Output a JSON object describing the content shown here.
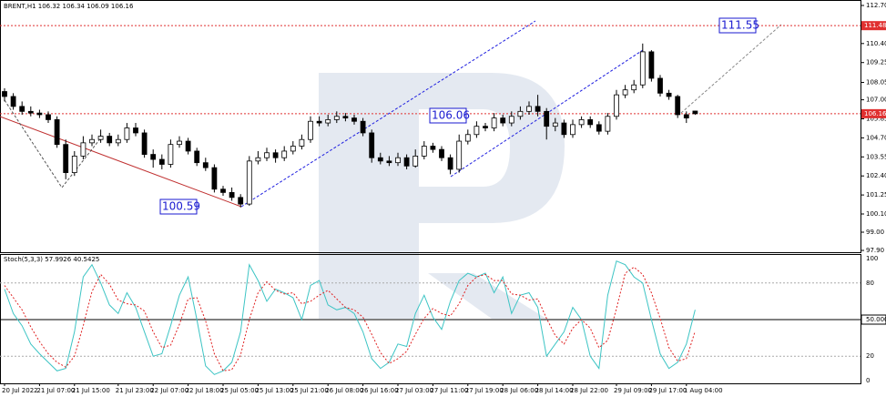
{
  "chart_data": [
    {
      "type": "candlestick",
      "title": "BRENT,H1 106.32 106.34 106.09 106.16",
      "open": [
        107.5,
        107.2,
        106.6,
        106.3,
        106.2,
        106.1,
        105.8,
        104.3,
        102.6,
        103.6,
        104.4,
        104.6,
        104.8,
        104.4,
        104.6,
        105.3,
        105.0,
        103.7,
        103.4,
        103.1,
        104.3,
        104.5,
        103.9,
        103.2,
        102.9,
        101.6,
        101.4,
        101.1,
        100.7,
        103.3,
        103.5,
        103.8,
        103.5,
        103.9,
        104.2,
        104.6,
        105.7,
        105.6,
        105.8,
        106.0,
        105.9,
        105.7,
        105.0,
        103.5,
        103.3,
        103.2,
        103.5,
        103.0,
        103.6,
        104.2,
        104.0,
        103.5,
        102.8,
        104.5,
        104.9,
        105.4,
        105.3,
        105.9,
        105.6,
        106.0,
        106.3,
        106.6,
        106.3,
        105.4,
        105.6,
        104.9,
        105.5,
        105.8,
        105.5,
        105.1,
        106.0,
        107.3,
        107.6,
        107.9,
        109.9,
        108.3,
        107.4,
        107.2,
        106.1,
        106.32
      ],
      "high": [
        107.7,
        107.4,
        106.9,
        106.6,
        106.4,
        106.3,
        106.0,
        104.6,
        103.9,
        104.8,
        104.9,
        105.2,
        105.0,
        104.9,
        105.6,
        105.6,
        105.2,
        104.0,
        103.7,
        104.6,
        104.8,
        104.7,
        104.1,
        103.5,
        103.1,
        101.8,
        101.7,
        101.3,
        103.6,
        103.9,
        104.1,
        104.0,
        104.2,
        104.5,
        104.9,
        106.0,
        106.0,
        106.1,
        106.3,
        106.2,
        106.1,
        105.9,
        105.2,
        103.8,
        103.6,
        103.8,
        103.7,
        104.0,
        104.5,
        104.4,
        104.2,
        103.7,
        104.9,
        105.2,
        105.7,
        105.6,
        106.2,
        106.1,
        106.3,
        106.6,
        106.9,
        107.3,
        106.5,
        105.9,
        105.8,
        105.8,
        106.0,
        106.0,
        105.7,
        106.2,
        107.6,
        107.9,
        108.2,
        110.4,
        110.0,
        108.5,
        107.6,
        107.3,
        106.3,
        106.34
      ],
      "low": [
        106.9,
        106.4,
        106.1,
        106.0,
        105.9,
        105.6,
        104.1,
        102.2,
        102.4,
        103.4,
        104.2,
        104.4,
        104.2,
        104.2,
        104.4,
        104.8,
        103.5,
        102.9,
        102.8,
        102.9,
        104.1,
        103.7,
        103.0,
        102.7,
        101.4,
        101.2,
        100.9,
        100.5,
        100.6,
        103.1,
        103.3,
        103.2,
        103.3,
        103.7,
        104.0,
        104.4,
        105.4,
        105.4,
        105.6,
        105.7,
        105.5,
        104.8,
        103.2,
        103.1,
        103.0,
        103.0,
        102.8,
        102.9,
        103.4,
        103.8,
        103.3,
        102.5,
        102.6,
        104.3,
        104.7,
        105.1,
        105.1,
        105.4,
        105.4,
        105.8,
        106.1,
        106.0,
        104.6,
        105.1,
        104.7,
        104.7,
        105.3,
        105.3,
        104.9,
        104.9,
        105.8,
        107.1,
        107.4,
        107.7,
        108.1,
        107.2,
        107.0,
        105.9,
        105.6,
        106.09
      ],
      "close": [
        107.2,
        106.6,
        106.3,
        106.2,
        106.1,
        105.8,
        104.3,
        102.6,
        103.6,
        104.4,
        104.6,
        104.8,
        104.4,
        104.6,
        105.3,
        105.0,
        103.7,
        103.4,
        103.1,
        104.3,
        104.5,
        103.9,
        103.2,
        102.9,
        101.6,
        101.4,
        101.1,
        100.7,
        103.3,
        103.5,
        103.8,
        103.5,
        103.9,
        104.2,
        104.6,
        105.7,
        105.6,
        105.8,
        106.0,
        105.9,
        105.7,
        105.0,
        103.5,
        103.3,
        103.2,
        103.5,
        103.0,
        103.6,
        104.2,
        104.0,
        103.5,
        102.8,
        104.5,
        104.9,
        105.4,
        105.3,
        105.9,
        105.6,
        106.0,
        106.3,
        106.6,
        106.3,
        105.4,
        105.6,
        104.9,
        105.5,
        105.8,
        105.5,
        105.1,
        106.0,
        107.3,
        107.6,
        107.9,
        109.9,
        108.3,
        107.4,
        107.2,
        106.1,
        105.9,
        106.16
      ],
      "ylim": [
        97.9,
        112.7
      ],
      "yticks": [
        {
          "value": 112.7,
          "label": "112.70"
        },
        {
          "value": 110.4,
          "label": "110.40"
        },
        109.25,
        108.05,
        {
          "value": 107,
          "label": "107.00"
        },
        105.85,
        {
          "value": 104.7,
          "label": "104.70"
        },
        103.55,
        {
          "value": 102.4,
          "label": "102.40"
        },
        101.25,
        {
          "value": 100.1,
          "label": "100.10"
        },
        {
          "value": 99,
          "label": "99.00"
        },
        {
          "value": 97.9,
          "label": "97.90"
        }
      ],
      "price_lines": [
        111.48,
        106.16
      ],
      "price_line_color": "#e03030",
      "annotations": [
        "100.59",
        "106.06",
        "111.55"
      ]
    },
    {
      "type": "line",
      "title": "Stoch(5,3,3) 57.9926 40.5425",
      "series": [
        {
          "color": "#3cc4c4",
          "values": [
            75,
            55,
            45,
            30,
            22,
            15,
            8,
            10,
            40,
            85,
            95,
            80,
            62,
            55,
            72,
            60,
            40,
            20,
            22,
            45,
            70,
            85,
            50,
            12,
            5,
            8,
            15,
            40,
            95,
            82,
            65,
            75,
            72,
            68,
            50,
            78,
            82,
            62,
            58,
            60,
            55,
            40,
            18,
            10,
            15,
            30,
            28,
            55,
            70,
            52,
            42,
            65,
            82,
            88,
            85,
            88,
            72,
            85,
            55,
            70,
            72,
            60,
            20,
            30,
            40,
            60,
            50,
            20,
            10,
            70,
            98,
            95,
            85,
            80,
            50,
            22,
            10,
            15,
            30,
            57.9926
          ]
        },
        {
          "color": "#e02020",
          "dash": true,
          "values": [
            78,
            68,
            58,
            44,
            32,
            22,
            15,
            11,
            20,
            45,
            73,
            87,
            79,
            66,
            63,
            62,
            57,
            40,
            27,
            29,
            46,
            67,
            68,
            49,
            22,
            8,
            9,
            21,
            50,
            72,
            81,
            74,
            71,
            72,
            63,
            65,
            70,
            74,
            67,
            60,
            58,
            52,
            38,
            23,
            14,
            18,
            24,
            38,
            51,
            59,
            55,
            53,
            63,
            78,
            85,
            87,
            82,
            82,
            71,
            70,
            66,
            67,
            51,
            37,
            30,
            43,
            50,
            43,
            27,
            33,
            59,
            88,
            93,
            87,
            72,
            51,
            27,
            16,
            18,
            40.5425
          ]
        }
      ],
      "ylim": [
        0,
        100
      ],
      "yticks": [
        100,
        80,
        {
          "value": 50,
          "label": "50.0000"
        },
        20,
        0
      ],
      "xticks": [
        {
          "value": 0,
          "label": "20 Jul 2022"
        },
        {
          "value": 4,
          "label": "21 Jul 07:00"
        },
        {
          "value": 8,
          "label": "21 Jul 15:00"
        },
        {
          "value": 13,
          "label": "21 Jul 23:00"
        },
        {
          "value": 17,
          "label": "22 Jul 07:00"
        },
        {
          "value": 21,
          "label": "22 Jul 18:00"
        },
        {
          "value": 25,
          "label": "25 Jul 05:00"
        },
        {
          "value": 29,
          "label": "25 Jul 13:00"
        },
        {
          "value": 33,
          "label": "25 Jul 21:00"
        },
        {
          "value": 37,
          "label": "26 Jul 08:00"
        },
        {
          "value": 41,
          "label": "26 Jul 16:00"
        },
        {
          "value": 45,
          "label": "27 Jul 03:00"
        },
        {
          "value": 49,
          "label": "27 Jul 11:00"
        },
        {
          "value": 53,
          "label": "27 Jul 19:00"
        },
        {
          "value": 57,
          "label": "28 Jul 06:00"
        },
        {
          "value": 61,
          "label": "28 Jul 14:00"
        },
        {
          "value": 65,
          "label": "28 Jul 22:00"
        },
        {
          "value": 70,
          "label": "29 Jul 09:00"
        },
        {
          "value": 74,
          "label": "29 Jul 17:00"
        },
        {
          "value": 78,
          "label": "1 Aug 04:00"
        }
      ]
    }
  ]
}
